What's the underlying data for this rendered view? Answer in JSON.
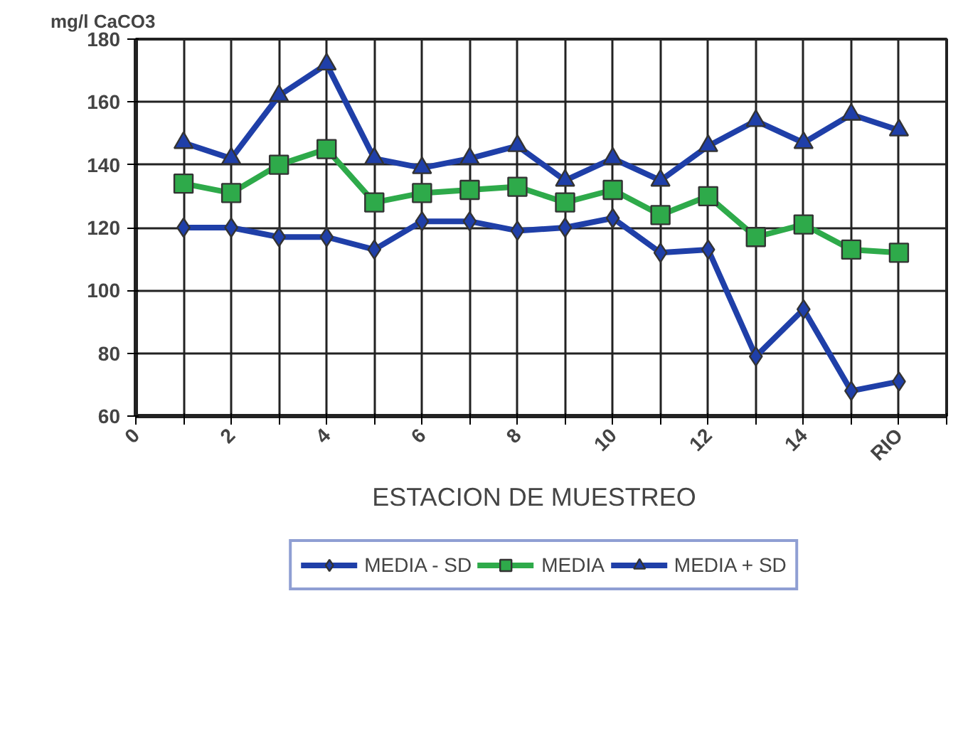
{
  "chart_data": {
    "type": "line",
    "xlabel": "ESTACION  DE  MUESTREO",
    "ylabel": "mg/l CaCO3",
    "x": [
      1,
      2,
      3,
      4,
      5,
      6,
      7,
      8,
      9,
      10,
      11,
      12,
      13,
      14,
      15,
      16
    ],
    "series": [
      {
        "name": "MEDIA - SD",
        "color": "#1f3fa8",
        "marker": "diamond",
        "values": [
          120,
          120,
          117,
          117,
          113,
          122,
          122,
          119,
          120,
          123,
          112,
          113,
          79,
          94,
          68,
          71
        ]
      },
      {
        "name": "MEDIA",
        "color": "#2eaa4a",
        "marker": "square",
        "values": [
          134,
          131,
          140,
          145,
          128,
          131,
          132,
          133,
          128,
          132,
          124,
          130,
          117,
          121,
          113,
          112
        ]
      },
      {
        "name": "MEDIA + SD",
        "color": "#1f3fa8",
        "marker": "triangle",
        "values": [
          147,
          142,
          162,
          172,
          142,
          139,
          142,
          146,
          135,
          142,
          135,
          146,
          154,
          147,
          156,
          151
        ]
      }
    ],
    "xlim": [
      0,
      17
    ],
    "ylim": [
      60,
      180
    ],
    "xticks": [
      0,
      {
        "value": 1,
        "label": null
      },
      2,
      {
        "value": 3,
        "label": null
      },
      4,
      {
        "value": 5,
        "label": null
      },
      6,
      {
        "value": 7,
        "label": null
      },
      8,
      {
        "value": 9,
        "label": null
      },
      10,
      {
        "value": 11,
        "label": null
      },
      12,
      {
        "value": 13,
        "label": null
      },
      14,
      {
        "value": 15,
        "label": null
      },
      {
        "value": 16,
        "label": "RIO"
      },
      {
        "value": 17,
        "label": null
      }
    ],
    "yticks": [
      60,
      80,
      100,
      120,
      140,
      160,
      180
    ],
    "grid": true,
    "legend": "bottom",
    "line_style": "solid"
  }
}
